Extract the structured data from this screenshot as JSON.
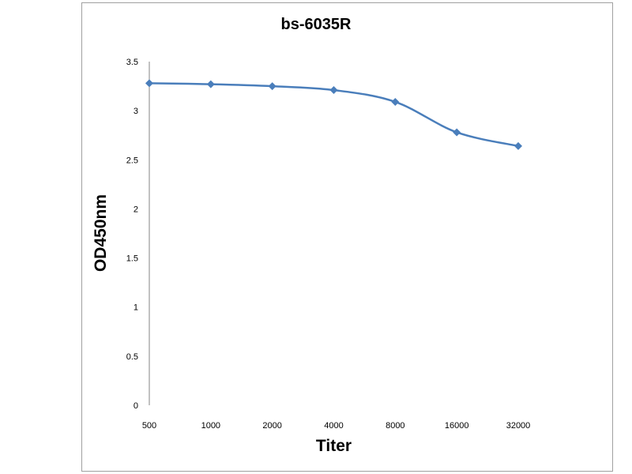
{
  "chart_data": {
    "type": "line",
    "title": "bs-6035R",
    "xlabel": "Titer",
    "ylabel": "OD450nm",
    "categories": [
      "500",
      "1000",
      "2000",
      "4000",
      "8000",
      "16000",
      "32000"
    ],
    "series": [
      {
        "name": "bs-6035R",
        "values": [
          3.28,
          3.27,
          3.25,
          3.21,
          3.09,
          2.78,
          2.64
        ],
        "color": "#4a7ebb"
      }
    ],
    "ylim": [
      0,
      3.5
    ],
    "yticks": [
      "0",
      "0.5",
      "1",
      "1.5",
      "2",
      "2.5",
      "3",
      "3.5"
    ],
    "grid": false,
    "legend": "none"
  }
}
